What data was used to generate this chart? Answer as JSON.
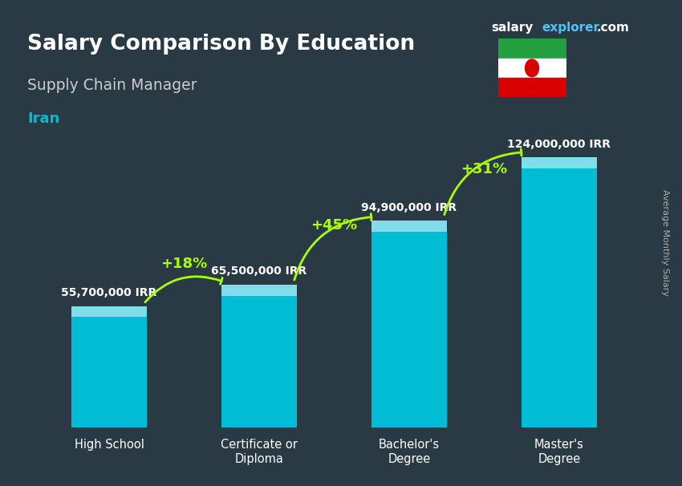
{
  "title_main": "Salary Comparison By Education",
  "title_sub": "Supply Chain Manager",
  "title_country": "Iran",
  "categories": [
    "High School",
    "Certificate or\nDiploma",
    "Bachelor's\nDegree",
    "Master's\nDegree"
  ],
  "values": [
    55700000,
    65500000,
    94900000,
    124000000
  ],
  "value_labels": [
    "55,700,000 IRR",
    "65,500,000 IRR",
    "94,900,000 IRR",
    "124,000,000 IRR"
  ],
  "pct_labels": [
    "+18%",
    "+45%",
    "+31%"
  ],
  "bar_color": "#00bcd4",
  "bar_color_top": "#80deea",
  "background_color": "#2a3540",
  "title_color": "#ffffff",
  "subtitle_color": "#dddddd",
  "country_color": "#00bcd4",
  "value_label_color": "#ffffff",
  "pct_label_color": "#aaff00",
  "arrow_color": "#aaff00",
  "watermark_salary": "salary",
  "watermark_explorer": "explorer",
  "watermark_com": ".com",
  "ylabel_text": "Average Monthly Salary",
  "ylim": [
    0,
    145000000
  ],
  "bar_width": 0.5
}
